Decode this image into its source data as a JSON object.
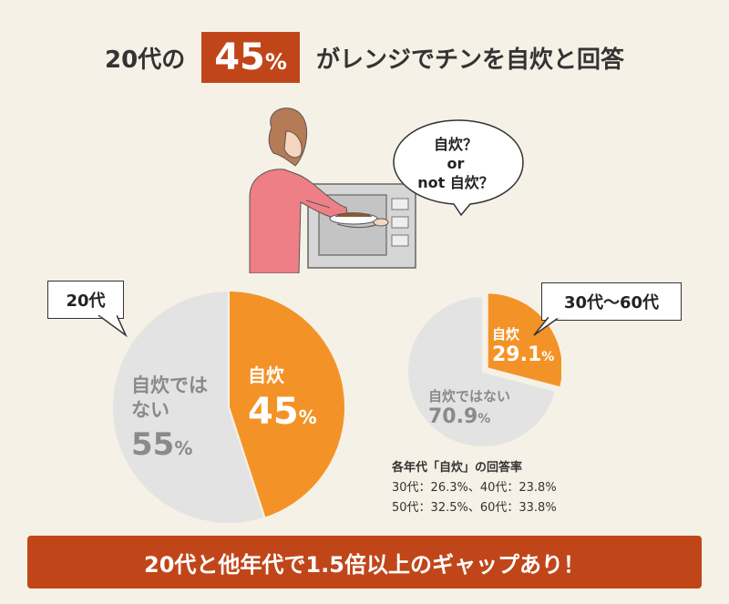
{
  "title": {
    "prefix": "20代の",
    "highlight_value": "45",
    "highlight_unit": "%",
    "suffix": "がレンジでチンを自炊と回答"
  },
  "bubble": {
    "line1": "自炊？",
    "line2": "or",
    "line3": "not 自炊？"
  },
  "chart_data": [
    {
      "type": "pie",
      "tag": "20代",
      "slices": [
        {
          "label": "自炊",
          "value": 45,
          "display": "45",
          "unit": "%",
          "color": "#f39327"
        },
        {
          "label": "自炊ではない",
          "value": 55,
          "display": "55",
          "unit": "%",
          "color": "#e3e3e3"
        }
      ]
    },
    {
      "type": "pie",
      "tag": "30代〜60代",
      "slices": [
        {
          "label": "自炊",
          "value": 29.1,
          "display": "29.1",
          "unit": "%",
          "color": "#f39327"
        },
        {
          "label": "自炊ではない",
          "value": 70.9,
          "display": "70.9",
          "unit": "%",
          "color": "#e3e3e3"
        }
      ]
    }
  ],
  "note": {
    "heading": "各年代「自炊」の回答率",
    "line1": "30代：26.3%、40代：23.8%",
    "line2": "50代：32.5%、60代：33.8%"
  },
  "footer": {
    "text": "20代と他年代で1.5倍以上のギャップあり！"
  },
  "colors": {
    "accent": "#c0461a",
    "orange": "#f39327",
    "gray": "#e3e3e3",
    "background": "#f6f1e6"
  }
}
